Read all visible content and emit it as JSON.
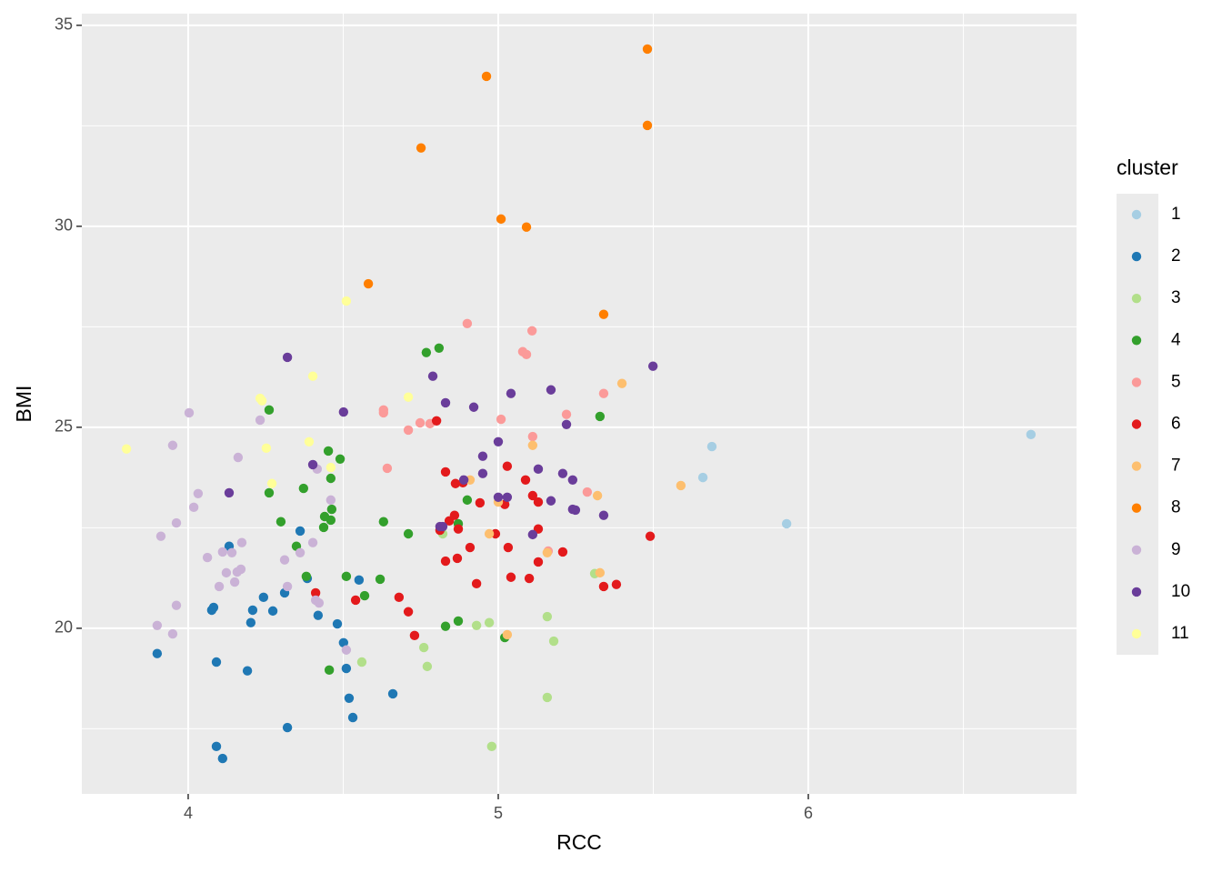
{
  "chart_data": {
    "type": "scatter",
    "x_label": "RCC",
    "y_label": "BMI",
    "legend_title": "cluster",
    "legend": "right",
    "grid": true,
    "xlim": [
      3.657,
      6.865
    ],
    "ylim": [
      15.88,
      35.29
    ],
    "xticks": [
      4,
      5,
      6
    ],
    "yticks": [
      20,
      25,
      30,
      35
    ],
    "xminorticks": [
      4.5,
      5.5,
      6.5
    ],
    "yminorticks": [
      17.5,
      22.5,
      27.5,
      32.5
    ],
    "series": [
      {
        "name": "1",
        "color": "#a6cee3",
        "x": [
          6.718,
          5.689,
          5.66,
          5.93
        ],
        "values": [
          24.82,
          24.52,
          23.75,
          22.6
        ]
      },
      {
        "name": "2",
        "color": "#1f78b4",
        "x": [
          3.9,
          4.091,
          4.076,
          4.082,
          4.132,
          4.208,
          4.202,
          4.191,
          4.243,
          4.273,
          4.311,
          4.361,
          4.384,
          4.419,
          4.481,
          4.501,
          4.551,
          4.51,
          4.519,
          4.531,
          4.66,
          4.32,
          4.091,
          4.111
        ],
        "values": [
          19.37,
          19.16,
          20.45,
          20.52,
          22.04,
          20.45,
          20.14,
          18.94,
          20.77,
          20.43,
          20.88,
          22.42,
          21.24,
          20.32,
          20.11,
          19.64,
          21.2,
          19.0,
          18.26,
          17.78,
          18.37,
          17.53,
          17.06,
          16.76
        ]
      },
      {
        "name": "3",
        "color": "#b2df8a",
        "x": [
          4.821,
          4.56,
          4.76,
          4.771,
          4.93,
          4.971,
          4.979,
          5.158,
          5.179,
          5.158,
          5.311
        ],
        "values": [
          22.35,
          19.16,
          19.52,
          19.05,
          20.07,
          20.14,
          17.06,
          20.29,
          19.68,
          18.28,
          21.36
        ]
      },
      {
        "name": "4",
        "color": "#33a02c",
        "x": [
          4.261,
          4.261,
          4.299,
          4.349,
          4.372,
          4.381,
          4.437,
          4.44,
          4.46,
          4.463,
          4.46,
          4.452,
          4.49,
          4.51,
          4.619,
          4.569,
          4.455,
          4.63,
          4.71,
          4.768,
          4.809,
          5.328,
          4.83,
          4.871,
          4.9,
          4.871,
          5.021
        ],
        "values": [
          25.43,
          23.37,
          22.65,
          22.04,
          23.48,
          21.29,
          22.51,
          22.78,
          22.69,
          22.96,
          23.73,
          24.41,
          24.21,
          21.29,
          21.22,
          20.81,
          18.96,
          22.65,
          22.35,
          26.86,
          26.97,
          25.27,
          20.05,
          20.18,
          23.19,
          22.6,
          19.77
        ]
      },
      {
        "name": "5",
        "color": "#fb9a99",
        "x": [
          4.9,
          5.109,
          5.091,
          5.079,
          4.63,
          4.63,
          4.748,
          4.78,
          4.71,
          4.642,
          5.009,
          5.111,
          5.22,
          5.34,
          5.287,
          5.161
        ],
        "values": [
          27.58,
          27.4,
          26.81,
          26.88,
          25.43,
          25.36,
          25.11,
          25.09,
          24.93,
          23.98,
          25.2,
          24.77,
          25.32,
          25.84,
          23.39,
          21.92
        ]
      },
      {
        "name": "6",
        "color": "#e31a1c",
        "x": [
          4.801,
          4.83,
          4.862,
          4.886,
          5.029,
          5.088,
          5.111,
          5.129,
          5.021,
          4.941,
          4.842,
          4.859,
          4.871,
          4.812,
          4.991,
          5.129,
          5.032,
          4.909,
          4.868,
          4.83,
          5.129,
          5.208,
          4.93,
          5.041,
          5.1,
          5.34,
          5.381,
          4.411,
          4.54,
          4.68,
          4.71,
          4.73,
          5.49
        ],
        "values": [
          25.16,
          23.89,
          23.6,
          23.62,
          24.03,
          23.69,
          23.3,
          23.14,
          23.08,
          23.12,
          22.67,
          22.81,
          22.47,
          22.44,
          22.35,
          22.47,
          22.01,
          22.01,
          21.74,
          21.67,
          21.65,
          21.9,
          21.11,
          21.27,
          21.24,
          21.04,
          21.09,
          20.88,
          20.7,
          20.77,
          20.41,
          19.82,
          22.29
        ]
      },
      {
        "name": "7",
        "color": "#fdbf6f",
        "x": [
          5.399,
          5.111,
          5.589,
          5.32,
          5.0,
          4.909,
          4.971,
          5.158,
          5.328,
          5.029
        ],
        "values": [
          26.09,
          24.55,
          23.55,
          23.3,
          23.14,
          23.69,
          22.35,
          21.88,
          21.38,
          19.84
        ]
      },
      {
        "name": "8",
        "color": "#ff7f00",
        "x": [
          5.481,
          4.962,
          5.481,
          4.751,
          5.009,
          5.091,
          4.581,
          5.34
        ],
        "values": [
          34.41,
          33.73,
          32.51,
          31.95,
          30.18,
          29.98,
          28.57,
          27.81
        ]
      },
      {
        "name": "9",
        "color": "#cab2d6",
        "x": [
          4.003,
          4.232,
          3.95,
          4.161,
          4.032,
          4.018,
          3.962,
          3.912,
          4.062,
          4.111,
          4.141,
          4.173,
          4.123,
          4.17,
          4.158,
          4.1,
          4.15,
          4.311,
          4.32,
          4.361,
          4.402,
          4.46,
          4.416,
          4.411,
          4.422,
          3.962,
          3.9,
          3.95,
          4.51
        ],
        "values": [
          25.36,
          25.18,
          24.55,
          24.25,
          23.35,
          23.01,
          22.62,
          22.29,
          21.76,
          21.9,
          21.88,
          22.13,
          21.38,
          21.47,
          21.4,
          21.04,
          21.15,
          21.7,
          21.04,
          21.88,
          22.13,
          23.19,
          23.96,
          20.7,
          20.63,
          20.57,
          20.07,
          19.86,
          19.46
        ]
      },
      {
        "name": "10",
        "color": "#6a3d9a",
        "x": [
          4.32,
          4.501,
          4.132,
          4.402,
          4.789,
          4.83,
          4.921,
          5.041,
          5.17,
          5.499,
          5.22,
          5.0,
          4.95,
          4.95,
          4.889,
          5.129,
          5.208,
          5.24,
          5.029,
          5.0,
          5.17,
          5.24,
          5.249,
          5.34,
          4.821,
          4.812,
          5.111
        ],
        "values": [
          26.74,
          25.38,
          23.37,
          24.07,
          26.27,
          25.61,
          25.5,
          25.84,
          25.93,
          26.52,
          25.07,
          24.64,
          24.28,
          23.85,
          23.69,
          23.96,
          23.85,
          23.69,
          23.26,
          23.26,
          23.17,
          22.96,
          22.94,
          22.81,
          22.53,
          22.53,
          22.33
        ]
      },
      {
        "name": "11",
        "color": "#ffff99",
        "x": [
          3.801,
          4.51,
          4.402,
          4.232,
          4.238,
          4.71,
          4.39,
          4.252,
          4.46,
          4.27
        ],
        "values": [
          24.46,
          28.14,
          26.27,
          25.72,
          25.66,
          25.75,
          24.64,
          24.48,
          24.0,
          23.6
        ]
      }
    ]
  }
}
